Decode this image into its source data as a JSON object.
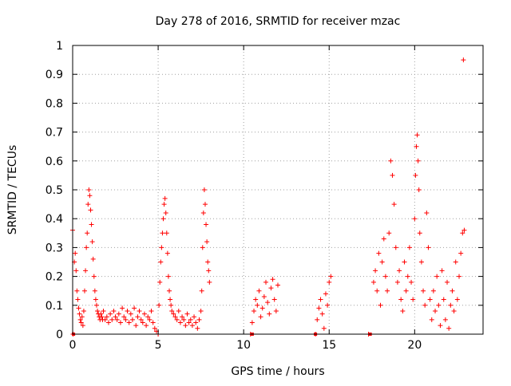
{
  "chart_data": {
    "type": "scatter",
    "title": "Day 278 of 2016, SRMTID for receiver mzac",
    "xlabel": "GPS time / hours",
    "ylabel": "SRMTID / TECUs",
    "xlim": [
      0,
      24
    ],
    "ylim": [
      0,
      1
    ],
    "xticks": [
      0,
      5,
      10,
      15,
      20
    ],
    "xtick_labels": [
      "0",
      "5",
      "10",
      "15",
      "20"
    ],
    "yticks": [
      0,
      0.1,
      0.2,
      0.3,
      0.4,
      0.5,
      0.6,
      0.7,
      0.8,
      0.9,
      1
    ],
    "ytick_labels": [
      "0",
      "0.1",
      "0.2",
      "0.3",
      "0.4",
      "0.5",
      "0.6",
      "0.7",
      "0.8",
      "0.9",
      "1"
    ],
    "grid": true,
    "marker": "+",
    "color": "#ff0000",
    "series": [
      {
        "name": "SRMTID",
        "x": [
          0.0,
          0.02,
          0.1,
          0.15,
          0.2,
          0.25,
          0.3,
          0.35,
          0.4,
          0.45,
          0.5,
          0.55,
          0.6,
          0.65,
          0.7,
          0.75,
          0.8,
          0.85,
          0.9,
          0.95,
          1.0,
          1.05,
          1.1,
          1.15,
          1.2,
          1.25,
          1.3,
          1.35,
          1.4,
          1.45,
          1.5,
          1.55,
          1.6,
          1.65,
          1.7,
          1.75,
          1.8,
          1.9,
          2.0,
          2.1,
          2.2,
          2.3,
          2.4,
          2.5,
          2.6,
          2.7,
          2.8,
          2.9,
          3.0,
          3.1,
          3.2,
          3.3,
          3.4,
          3.5,
          3.6,
          3.7,
          3.8,
          3.9,
          4.0,
          4.1,
          4.2,
          4.3,
          4.4,
          4.5,
          4.6,
          4.7,
          4.8,
          4.9,
          5.0,
          5.05,
          5.1,
          5.15,
          5.2,
          5.25,
          5.3,
          5.35,
          5.4,
          5.45,
          5.5,
          5.55,
          5.6,
          5.65,
          5.7,
          5.75,
          5.8,
          5.9,
          6.0,
          6.1,
          6.2,
          6.3,
          6.4,
          6.5,
          6.6,
          6.7,
          6.8,
          6.9,
          7.0,
          7.1,
          7.2,
          7.3,
          7.4,
          7.5,
          7.55,
          7.6,
          7.65,
          7.7,
          7.75,
          7.8,
          7.85,
          7.9,
          7.95,
          8.0,
          10.4,
          10.5,
          10.6,
          10.7,
          10.8,
          10.9,
          11.0,
          11.1,
          11.2,
          11.3,
          11.4,
          11.5,
          11.6,
          11.7,
          11.8,
          11.9,
          12.0,
          14.2,
          14.3,
          14.4,
          14.5,
          14.6,
          14.7,
          14.8,
          14.9,
          15.0,
          15.1,
          17.3,
          17.6,
          17.7,
          17.8,
          17.9,
          18.0,
          18.1,
          18.2,
          18.3,
          18.4,
          18.5,
          18.6,
          18.7,
          18.8,
          18.9,
          19.0,
          19.1,
          19.2,
          19.3,
          19.4,
          19.5,
          19.6,
          19.7,
          19.8,
          19.9,
          20.0,
          20.05,
          20.1,
          20.15,
          20.2,
          20.25,
          20.3,
          20.4,
          20.5,
          20.6,
          20.7,
          20.8,
          20.9,
          21.0,
          21.1,
          21.2,
          21.3,
          21.4,
          21.5,
          21.6,
          21.7,
          21.8,
          21.9,
          22.0,
          22.1,
          22.2,
          22.3,
          22.4,
          22.5,
          22.6,
          22.7,
          22.8,
          22.85,
          22.9
        ],
        "y": [
          0.36,
          0.0,
          0.25,
          0.28,
          0.22,
          0.15,
          0.12,
          0.09,
          0.07,
          0.05,
          0.04,
          0.06,
          0.03,
          0.08,
          0.15,
          0.22,
          0.3,
          0.35,
          0.45,
          0.5,
          0.48,
          0.43,
          0.38,
          0.32,
          0.26,
          0.2,
          0.15,
          0.12,
          0.1,
          0.08,
          0.07,
          0.06,
          0.05,
          0.07,
          0.06,
          0.05,
          0.08,
          0.05,
          0.06,
          0.04,
          0.07,
          0.05,
          0.08,
          0.06,
          0.05,
          0.07,
          0.04,
          0.09,
          0.06,
          0.05,
          0.08,
          0.04,
          0.07,
          0.05,
          0.09,
          0.03,
          0.06,
          0.08,
          0.05,
          0.04,
          0.07,
          0.03,
          0.06,
          0.05,
          0.08,
          0.04,
          0.02,
          0.01,
          0.0,
          0.1,
          0.18,
          0.25,
          0.3,
          0.35,
          0.4,
          0.45,
          0.47,
          0.42,
          0.35,
          0.28,
          0.2,
          0.15,
          0.12,
          0.1,
          0.08,
          0.07,
          0.06,
          0.05,
          0.08,
          0.04,
          0.06,
          0.05,
          0.03,
          0.07,
          0.04,
          0.05,
          0.03,
          0.06,
          0.04,
          0.02,
          0.05,
          0.08,
          0.15,
          0.3,
          0.42,
          0.5,
          0.45,
          0.38,
          0.32,
          0.25,
          0.22,
          0.18,
          0.0,
          0.04,
          0.08,
          0.12,
          0.1,
          0.15,
          0.06,
          0.09,
          0.13,
          0.18,
          0.11,
          0.07,
          0.16,
          0.19,
          0.12,
          0.08,
          0.17,
          0.0,
          0.05,
          0.09,
          0.12,
          0.07,
          0.02,
          0.14,
          0.1,
          0.18,
          0.2,
          0.0,
          0.18,
          0.22,
          0.15,
          0.28,
          0.1,
          0.25,
          0.33,
          0.2,
          0.15,
          0.35,
          0.6,
          0.55,
          0.45,
          0.3,
          0.18,
          0.22,
          0.12,
          0.08,
          0.25,
          0.15,
          0.2,
          0.3,
          0.18,
          0.12,
          0.4,
          0.55,
          0.65,
          0.69,
          0.6,
          0.5,
          0.35,
          0.25,
          0.15,
          0.1,
          0.42,
          0.3,
          0.12,
          0.05,
          0.15,
          0.08,
          0.2,
          0.1,
          0.03,
          0.22,
          0.12,
          0.05,
          0.18,
          0.02,
          0.1,
          0.15,
          0.08,
          0.25,
          0.12,
          0.2,
          0.28,
          0.35,
          0.95,
          0.36
        ],
        "zero_markers_x": [
          0.05,
          10.5,
          14.2,
          17.4
        ]
      }
    ]
  }
}
